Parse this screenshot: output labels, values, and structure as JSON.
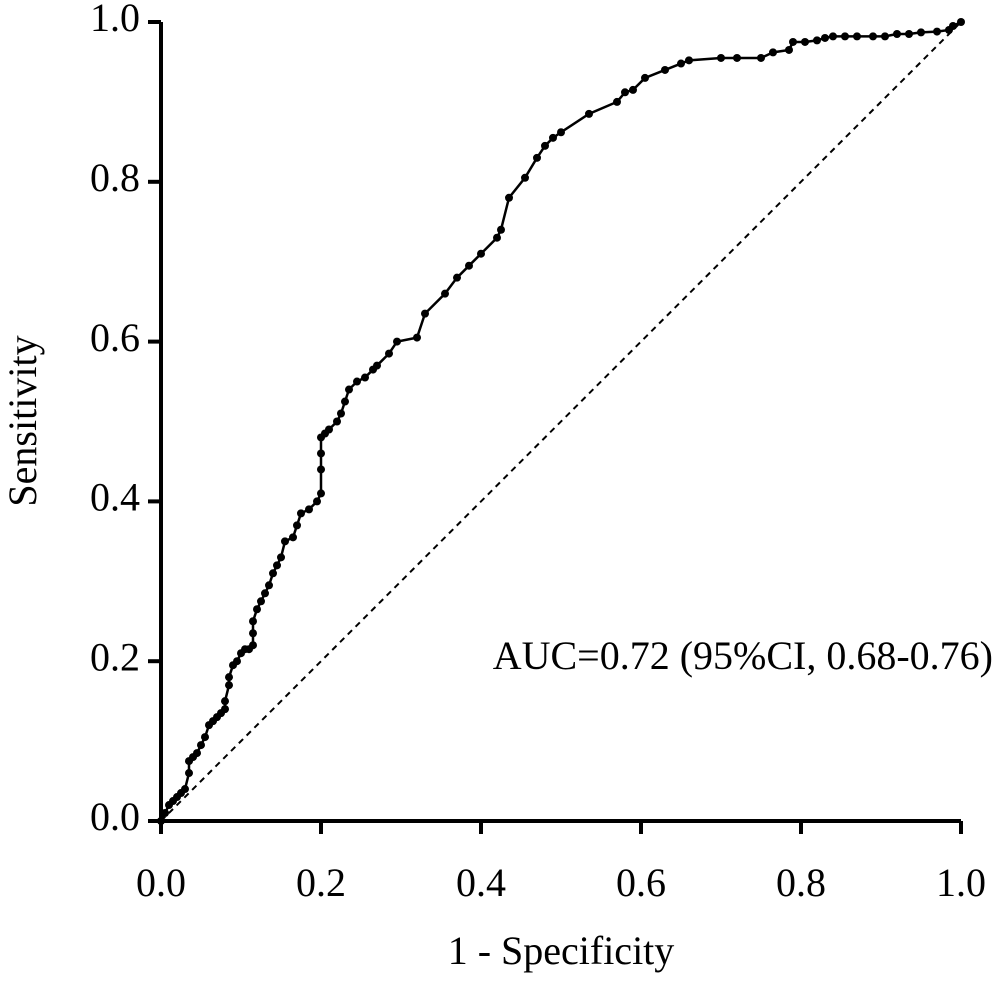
{
  "chart_data": {
    "type": "line",
    "xlabel": "1 - Specificity",
    "ylabel": "Sensitivity",
    "annotation": "AUC=0.72 (95%CI, 0.68-0.76)",
    "color": "#000000",
    "x": [
      0,
      0.005,
      0.01,
      0.015,
      0.02,
      0.025,
      0.03,
      0.035,
      0.035,
      0.04,
      0.045,
      0.05,
      0.055,
      0.06,
      0.065,
      0.07,
      0.075,
      0.08,
      0.08,
      0.085,
      0.085,
      0.09,
      0.095,
      0.1,
      0.105,
      0.11,
      0.115,
      0.115,
      0.115,
      0.12,
      0.125,
      0.13,
      0.135,
      0.14,
      0.145,
      0.15,
      0.155,
      0.165,
      0.17,
      0.175,
      0.185,
      0.195,
      0.2,
      0.2,
      0.2,
      0.2,
      0.205,
      0.21,
      0.22,
      0.225,
      0.23,
      0.235,
      0.245,
      0.255,
      0.265,
      0.27,
      0.285,
      0.295,
      0.32,
      0.33,
      0.355,
      0.37,
      0.385,
      0.4,
      0.42,
      0.425,
      0.435,
      0.455,
      0.47,
      0.48,
      0.49,
      0.5,
      0.535,
      0.57,
      0.58,
      0.59,
      0.605,
      0.63,
      0.65,
      0.66,
      0.7,
      0.72,
      0.75,
      0.765,
      0.785,
      0.79,
      0.805,
      0.82,
      0.83,
      0.84,
      0.855,
      0.87,
      0.89,
      0.905,
      0.92,
      0.935,
      0.95,
      0.97,
      0.985,
      0.99,
      1
    ],
    "values": [
      0,
      0.01,
      0.02,
      0.025,
      0.03,
      0.035,
      0.04,
      0.06,
      0.075,
      0.08,
      0.085,
      0.095,
      0.105,
      0.12,
      0.125,
      0.13,
      0.135,
      0.14,
      0.15,
      0.17,
      0.18,
      0.195,
      0.2,
      0.21,
      0.215,
      0.215,
      0.22,
      0.235,
      0.25,
      0.265,
      0.275,
      0.285,
      0.295,
      0.31,
      0.32,
      0.33,
      0.35,
      0.355,
      0.37,
      0.385,
      0.39,
      0.4,
      0.41,
      0.44,
      0.46,
      0.48,
      0.485,
      0.49,
      0.5,
      0.51,
      0.525,
      0.54,
      0.55,
      0.555,
      0.565,
      0.57,
      0.585,
      0.6,
      0.605,
      0.635,
      0.66,
      0.68,
      0.695,
      0.71,
      0.73,
      0.74,
      0.78,
      0.805,
      0.83,
      0.845,
      0.855,
      0.862,
      0.885,
      0.9,
      0.912,
      0.915,
      0.93,
      0.94,
      0.948,
      0.952,
      0.955,
      0.955,
      0.955,
      0.962,
      0.965,
      0.975,
      0.975,
      0.977,
      0.98,
      0.982,
      0.982,
      0.982,
      0.982,
      0.982,
      0.985,
      0.985,
      0.987,
      0.988,
      0.99,
      0.995,
      1
    ],
    "xlim": [
      0,
      1
    ],
    "ylim": [
      0,
      1
    ],
    "xticks": [
      {
        "value": 0,
        "label": "0.0"
      },
      0.2,
      0.4,
      0.6,
      0.8,
      {
        "value": 1,
        "label": "1.0"
      }
    ],
    "yticks": [
      {
        "value": 0,
        "label": "0.0"
      },
      0.2,
      0.4,
      0.6,
      0.8,
      {
        "value": 1,
        "label": "1.0"
      }
    ],
    "grid": false
  }
}
